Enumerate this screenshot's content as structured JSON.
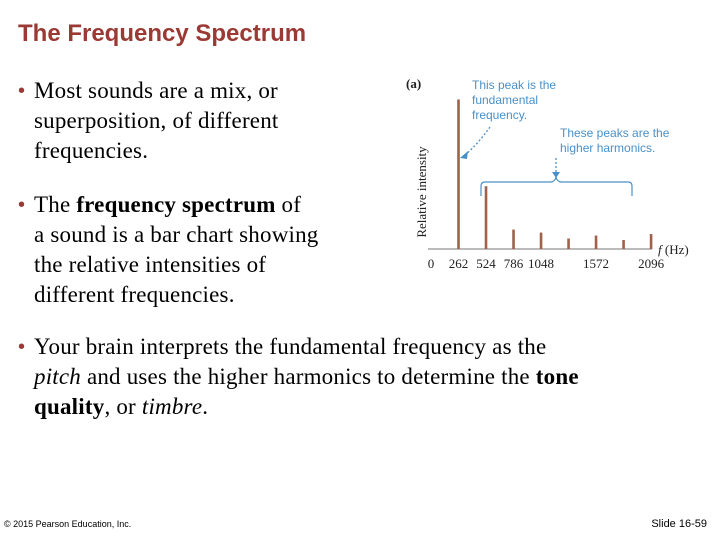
{
  "slide": {
    "title": "The Frequency Spectrum",
    "bullet1": {
      "l1": "Most sounds are a mix, or",
      "l2": "superposition, of different",
      "l3": "frequencies."
    },
    "bullet2": {
      "l1a": "The ",
      "l1b": "frequency spectrum",
      "l1c": " of",
      "l2": "a sound is a bar chart showing",
      "l3": "the relative intensities of",
      "l4": "different frequencies."
    },
    "bullet3": {
      "l1": "Your brain interprets the fundamental frequency as the",
      "l2a": "pitch",
      "l2b": " and uses the higher harmonics to determine the ",
      "l2c": "tone",
      "l3a": "quality",
      "l3b": ", or ",
      "l3c": "timbre",
      "l3d": "."
    },
    "bullet_glyph": "•",
    "footer_left": "© 2015 Pearson Education, Inc.",
    "footer_right": "Slide 16-59",
    "colors": {
      "title": "#9b3a34",
      "bars": "#a0604a",
      "annotation": "#4a90c8"
    }
  },
  "chart_data": {
    "type": "bar",
    "panel_label": "(a)",
    "ylabel": "Relative intensity",
    "xlabel_italic": "f",
    "xlabel_unit": " (Hz)",
    "x_ticks": [
      "0",
      "262",
      "524",
      "786",
      "1048",
      "1572",
      "2096"
    ],
    "x": [
      262,
      524,
      786,
      1048,
      1310,
      1572,
      1834,
      2096
    ],
    "values": [
      1.0,
      0.42,
      0.13,
      0.11,
      0.07,
      0.09,
      0.06,
      0.1
    ],
    "xlim": [
      0,
      2200
    ],
    "ylim": [
      0,
      1.05
    ],
    "annotations": {
      "fundamental_l1": "This peak is the",
      "fundamental_l2": "fundamental",
      "fundamental_l3": "frequency.",
      "harmonics_l1": "These peaks are the",
      "harmonics_l2": "higher harmonics."
    }
  }
}
